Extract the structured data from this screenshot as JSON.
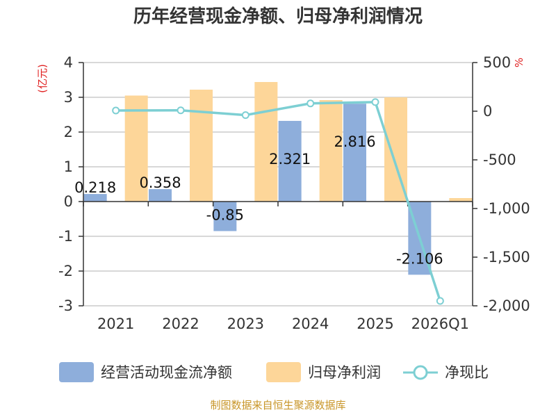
{
  "chart_data": {
    "type": "bar+line",
    "title": "历年经营现金净额、归母净利润情况",
    "categories": [
      "2021",
      "2022",
      "2023",
      "2024",
      "2025",
      "2026Q1"
    ],
    "series": [
      {
        "name": "经营活动现金流净额",
        "type": "bar",
        "axis": "left",
        "values": [
          0.218,
          0.358,
          -0.85,
          2.321,
          2.816,
          -2.106
        ],
        "labels": [
          "0.218",
          "0.358",
          "-0.85",
          "2.321",
          "2.816",
          "-2.106"
        ]
      },
      {
        "name": "归母净利润",
        "type": "bar",
        "axis": "left",
        "values": [
          3.05,
          3.22,
          3.44,
          2.92,
          3.0,
          0.1
        ]
      },
      {
        "name": "净现比",
        "type": "line",
        "axis": "right",
        "values": [
          7,
          9,
          -40,
          80,
          94,
          -1950
        ]
      }
    ],
    "left_axis": {
      "label": "(亿元)",
      "min": -3,
      "max": 4,
      "ticks": [
        "4",
        "3",
        "2",
        "1",
        "0",
        "-1",
        "-2",
        "-3"
      ]
    },
    "right_axis": {
      "label": "%",
      "min": -2000,
      "max": 500,
      "ticks": [
        "500",
        "0",
        "-500",
        "-1,000",
        "-1,500",
        "-2,000"
      ]
    },
    "grid": true,
    "legend_position": "bottom"
  },
  "colors": {
    "cashflow": "#8EAEDB",
    "profit": "#FDD699",
    "ratio": "#7DCFD3",
    "grid": "#cccccc",
    "axis": "#333333",
    "unit": "#e02020",
    "source": "#c89528"
  },
  "source": "制图数据来自恒生聚源数据库"
}
